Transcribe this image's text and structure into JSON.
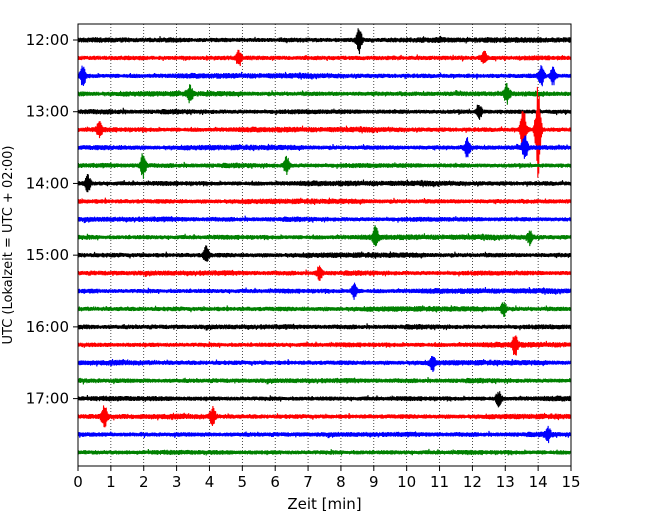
{
  "chart_data": {
    "type": "line",
    "title": "",
    "xlabel": "Zeit  [min]",
    "ylabel": "UTC (Lokalzeit = UTC + 02:00)",
    "xlim": [
      0,
      15
    ],
    "x_ticks": [
      "0",
      "1",
      "2",
      "3",
      "4",
      "5",
      "6",
      "7",
      "8",
      "9",
      "10",
      "11",
      "12",
      "13",
      "14",
      "15"
    ],
    "y_tick_labels": [
      "12:00",
      "13:00",
      "14:00",
      "15:00",
      "16:00",
      "17:00"
    ],
    "grid": "vertical dotted",
    "row_interval_minutes": 15,
    "colors": [
      "#000000",
      "#ff0000",
      "#0000ff",
      "#008000"
    ],
    "series": [
      {
        "start": "12:00",
        "color": "#000000",
        "events": [
          {
            "x": 8.55,
            "amp": 1.8
          }
        ]
      },
      {
        "start": "12:15",
        "color": "#ff0000",
        "events": [
          {
            "x": 4.9,
            "amp": 1.0
          },
          {
            "x": 12.35,
            "amp": 1.0
          }
        ]
      },
      {
        "start": "12:30",
        "color": "#0000ff",
        "events": [
          {
            "x": 0.15,
            "amp": 1.3
          },
          {
            "x": 14.1,
            "amp": 1.4
          },
          {
            "x": 14.45,
            "amp": 1.2
          }
        ]
      },
      {
        "start": "12:45",
        "color": "#008000",
        "events": [
          {
            "x": 3.4,
            "amp": 1.0
          },
          {
            "x": 13.05,
            "amp": 1.4
          }
        ]
      },
      {
        "start": "13:00",
        "color": "#000000",
        "events": [
          {
            "x": 12.2,
            "amp": 1.1
          }
        ]
      },
      {
        "start": "13:15",
        "color": "#ff0000",
        "events": [
          {
            "x": 0.65,
            "amp": 1.0
          },
          {
            "x": 13.55,
            "amp": 3.5
          },
          {
            "x": 14.0,
            "amp": 6.5
          }
        ]
      },
      {
        "start": "13:30",
        "color": "#0000ff",
        "events": [
          {
            "x": 11.85,
            "amp": 1.4
          },
          {
            "x": 13.6,
            "amp": 1.6
          }
        ]
      },
      {
        "start": "13:45",
        "color": "#008000",
        "events": [
          {
            "x": 1.98,
            "amp": 1.8
          },
          {
            "x": 6.35,
            "amp": 1.2
          }
        ]
      },
      {
        "start": "14:00",
        "color": "#000000",
        "events": [
          {
            "x": 0.3,
            "amp": 1.1
          }
        ]
      },
      {
        "start": "14:15",
        "color": "#ff0000",
        "events": []
      },
      {
        "start": "14:30",
        "color": "#0000ff",
        "events": []
      },
      {
        "start": "14:45",
        "color": "#008000",
        "events": [
          {
            "x": 9.05,
            "amp": 1.3
          },
          {
            "x": 13.75,
            "amp": 1.0
          }
        ]
      },
      {
        "start": "15:00",
        "color": "#000000",
        "events": [
          {
            "x": 3.9,
            "amp": 1.2
          }
        ]
      },
      {
        "start": "15:15",
        "color": "#ff0000",
        "events": [
          {
            "x": 7.35,
            "amp": 1.0
          }
        ]
      },
      {
        "start": "15:30",
        "color": "#0000ff",
        "events": [
          {
            "x": 8.4,
            "amp": 1.0
          }
        ]
      },
      {
        "start": "15:45",
        "color": "#008000",
        "events": [
          {
            "x": 12.95,
            "amp": 1.0
          }
        ]
      },
      {
        "start": "16:00",
        "color": "#000000",
        "events": []
      },
      {
        "start": "16:15",
        "color": "#ff0000",
        "events": [
          {
            "x": 13.3,
            "amp": 1.5
          }
        ]
      },
      {
        "start": "16:30",
        "color": "#0000ff",
        "events": [
          {
            "x": 10.8,
            "amp": 1.0
          }
        ]
      },
      {
        "start": "16:45",
        "color": "#008000",
        "events": []
      },
      {
        "start": "17:00",
        "color": "#000000",
        "events": [
          {
            "x": 12.8,
            "amp": 1.0
          }
        ]
      },
      {
        "start": "17:15",
        "color": "#ff0000",
        "events": [
          {
            "x": 0.8,
            "amp": 1.6
          },
          {
            "x": 4.1,
            "amp": 1.3
          }
        ]
      },
      {
        "start": "17:30",
        "color": "#0000ff",
        "events": [
          {
            "x": 14.3,
            "amp": 1.0
          }
        ]
      },
      {
        "start": "17:45",
        "color": "#008000",
        "events": []
      }
    ]
  }
}
